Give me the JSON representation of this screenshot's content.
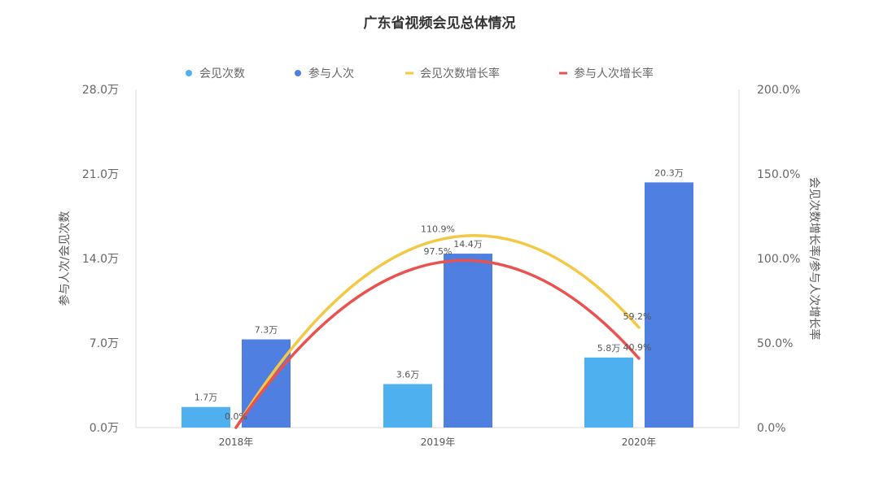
{
  "chart_data": {
    "type": "bar",
    "title": "广东省视频会见总体情况",
    "categories": [
      "2018年",
      "2019年",
      "2020年"
    ],
    "series": [
      {
        "name": "会见次数",
        "kind": "bar",
        "axis": "left",
        "color": "#4FB0F0",
        "values": [
          1.7,
          3.6,
          5.8
        ],
        "labels": [
          "1.7万",
          "3.6万",
          "5.8万"
        ]
      },
      {
        "name": "参与人次",
        "kind": "bar",
        "axis": "left",
        "color": "#4F7FE0",
        "values": [
          7.3,
          14.4,
          20.3
        ],
        "labels": [
          "7.3万",
          "14.4万",
          "20.3万"
        ]
      },
      {
        "name": "会见次数增长率",
        "kind": "line",
        "axis": "right",
        "color": "#F3C845",
        "values": [
          0.0,
          110.9,
          59.2
        ],
        "labels": [
          "",
          "110.9%",
          "59.2%"
        ]
      },
      {
        "name": "参与人次增长率",
        "kind": "line",
        "axis": "right",
        "color": "#E9524F",
        "values": [
          0.0,
          97.5,
          40.9
        ],
        "labels": [
          "0.0%",
          "97.5%",
          "40.9%"
        ]
      }
    ],
    "y_left": {
      "label": "参与人次/会见次数",
      "min": 0,
      "max": 28,
      "ticks": [
        "0.0万",
        "7.0万",
        "14.0万",
        "21.0万",
        "28.0万"
      ]
    },
    "y_right": {
      "label": "会见次数增长率/参与人次增长率",
      "min": 0,
      "max": 200,
      "ticks": [
        "0.0%",
        "50.0%",
        "100.0%",
        "150.0%",
        "200.0%"
      ]
    },
    "legend_position": "top-center",
    "grid": false
  }
}
